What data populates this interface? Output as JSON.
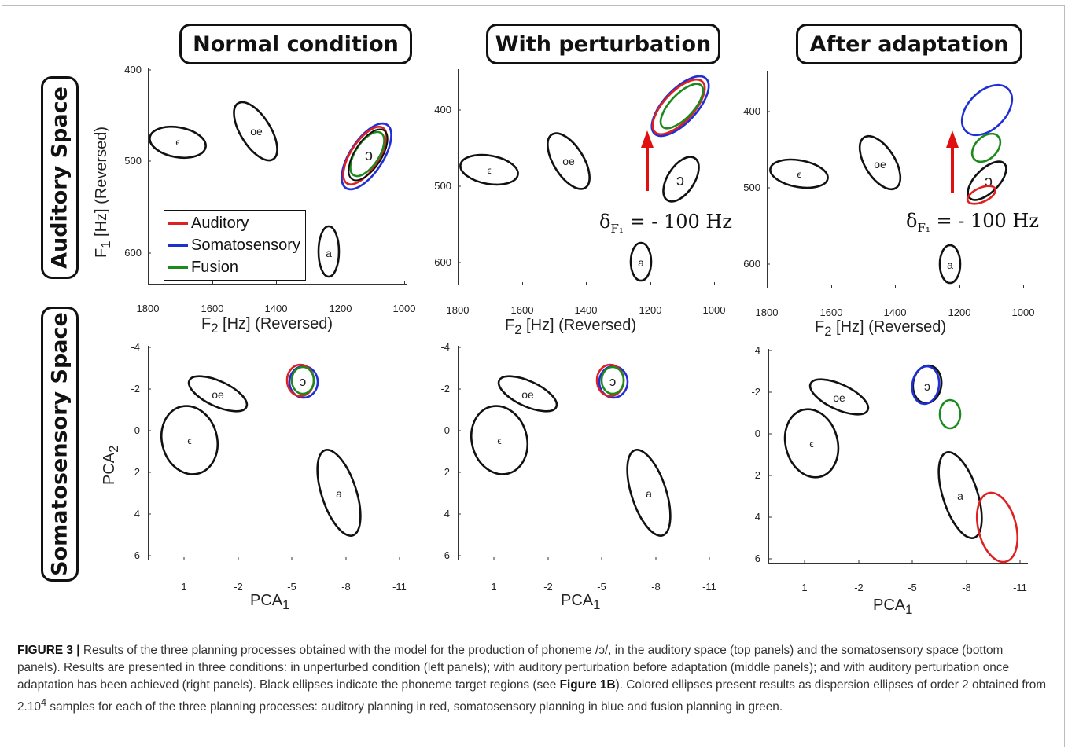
{
  "columns": [
    "Normal condition",
    "With perturbation",
    "After adaptation"
  ],
  "rows": [
    "Auditory Space",
    "Somatosensory Space"
  ],
  "auditory_axes": {
    "xlabel_main": "F",
    "xlabel_sub": "2",
    "xlabel_rest": " [Hz] (Reversed)",
    "ylabel_main": "F",
    "ylabel_sub": "1",
    "ylabel_rest": " [Hz] (Reversed)",
    "xticks": [
      "1800",
      "1600",
      "1400",
      "1200",
      "1000"
    ],
    "yticks": [
      "400",
      "500",
      "600"
    ]
  },
  "somato_axes": {
    "xlabel_main": "PCA",
    "xlabel_sub": "1",
    "ylabel_main": "PCA",
    "ylabel_sub": "2",
    "xticks": [
      "1",
      "-2",
      "-5",
      "-8",
      "-11"
    ],
    "yticks": [
      "-4",
      "-2",
      "0",
      "2",
      "4",
      "6"
    ]
  },
  "phoneme_labels": {
    "e": "ϵ",
    "oe": "oe",
    "o": "ɔ",
    "a": "a"
  },
  "legend": [
    {
      "label": "Auditory",
      "color": "#e02020"
    },
    {
      "label": "Somatosensory",
      "color": "#1f2fd6"
    },
    {
      "label": "Fusion",
      "color": "#1d8a1d"
    }
  ],
  "annotation": {
    "delta": "δ",
    "sub": "F₁",
    "text": " = - 100 Hz"
  },
  "caption": {
    "figure_label": "FIGURE 3 |",
    "text_1": " Results of the three planning processes obtained with the model for the production of phoneme /ɔ/, in the auditory space (top panels) and the somatosensory space (bottom panels). Results are presented in three conditions: in unperturbed condition (left panels); with auditory perturbation before adaptation (middle panels); and with auditory perturbation once adaptation has been achieved (right panels). Black ellipses indicate the phoneme target regions (see ",
    "link": "Figure 1B",
    "text_2": "). Colored ellipses present results as dispersion ellipses of order 2 obtained from 2.10",
    "sup": "4",
    "text_3": " samples for each of the three planning processes: auditory planning in red, somatosensory planning in blue and fusion planning in green."
  },
  "colors": {
    "auditory": "#e02020",
    "somatosensory": "#1f2fd6",
    "fusion": "#1d8a1d",
    "target": "#111111",
    "arrow": "#e01010"
  }
}
